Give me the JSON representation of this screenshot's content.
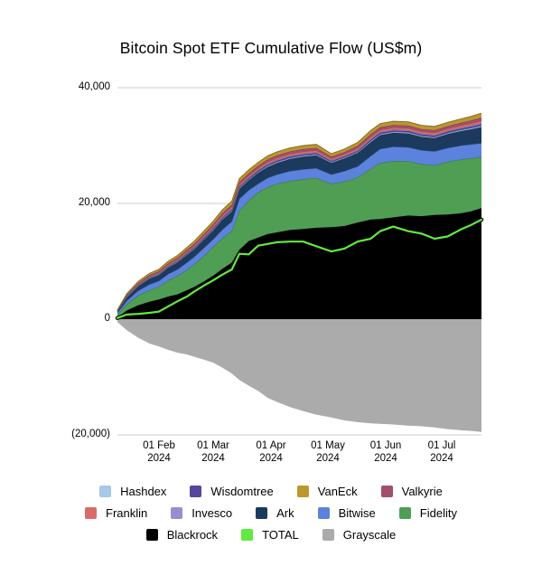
{
  "title": "Bitcoin Spot ETF Cumulative Flow (US$m)",
  "axes": {
    "y_ticks": [
      {
        "label": "40,000",
        "value": 40000
      },
      {
        "label": "20,000",
        "value": 20000
      },
      {
        "label": "0",
        "value": 0
      },
      {
        "label": "(20,000)",
        "value": -20000
      }
    ],
    "x_ticks": [
      {
        "label": "01 Feb",
        "year": "2024",
        "day": 22
      },
      {
        "label": "01 Mar",
        "year": "2024",
        "day": 51
      },
      {
        "label": "01 Apr",
        "year": "2024",
        "day": 82
      },
      {
        "label": "01 May",
        "year": "2024",
        "day": 112
      },
      {
        "label": "01 Jun",
        "year": "2024",
        "day": 143
      },
      {
        "label": "01 Jul",
        "year": "2024",
        "day": 173
      }
    ]
  },
  "legend": {
    "rows": [
      [
        {
          "label": "Hashdex",
          "color": "#a9c7e6"
        },
        {
          "label": "Wisdomtree",
          "color": "#55489c"
        },
        {
          "label": "VanEck",
          "color": "#bb972e"
        },
        {
          "label": "Valkyrie",
          "color": "#a44e6e"
        }
      ],
      [
        {
          "label": "Franklin",
          "color": "#d96c6a"
        },
        {
          "label": "Invesco",
          "color": "#9b8cce"
        },
        {
          "label": "Ark",
          "color": "#1c3a5e"
        },
        {
          "label": "Bitwise",
          "color": "#5b82dd"
        },
        {
          "label": "Fidelity",
          "color": "#4f9e54"
        }
      ],
      [
        {
          "label": "Blackrock",
          "color": "#000000"
        },
        {
          "label": "TOTAL",
          "color": "#62ea41"
        },
        {
          "label": "Grayscale",
          "color": "#ababab"
        }
      ]
    ]
  },
  "chart_data": {
    "type": "area",
    "title": "Bitcoin Spot ETF Cumulative Flow (US$m)",
    "unit": "US$m",
    "ylim": [
      -20000,
      40000
    ],
    "grid": true,
    "legend_position": "bottom",
    "x_days": [
      0,
      5,
      11,
      17,
      22,
      27,
      32,
      37,
      41,
      46,
      51,
      56,
      61,
      65,
      70,
      75,
      80,
      85,
      92,
      99,
      106,
      114,
      121,
      128,
      135,
      140,
      147,
      155,
      162,
      169,
      176,
      183,
      188,
      194
    ],
    "dates": [
      "10 Jan",
      "15 Jan",
      "21 Jan",
      "27 Jan",
      "01 Feb",
      "06 Feb",
      "11 Feb",
      "16 Feb",
      "20 Feb",
      "25 Feb",
      "01 Mar",
      "06 Mar",
      "11 Mar",
      "15 Mar",
      "20 Mar",
      "25 Mar",
      "30 Mar",
      "04 Apr",
      "11 Apr",
      "18 Apr",
      "25 Apr",
      "03 May",
      "10 May",
      "17 May",
      "24 May",
      "29 May",
      "05 Jun",
      "13 Jun",
      "20 Jun",
      "27 Jun",
      "04 Jul",
      "11 Jul",
      "16 Jul",
      "22 Jul"
    ],
    "y_gridlines": [
      40000,
      20000,
      0,
      -20000
    ],
    "series": [
      {
        "name": "Blackrock",
        "color": "#000000",
        "values": [
          300,
          1500,
          2400,
          3000,
          3400,
          3900,
          4300,
          5000,
          5600,
          6500,
          7500,
          8700,
          9800,
          12000,
          13500,
          14100,
          14700,
          15000,
          15400,
          15600,
          15800,
          15900,
          16100,
          16700,
          17200,
          17300,
          17600,
          17900,
          17800,
          18000,
          18100,
          18300,
          18600,
          19200
        ]
      },
      {
        "name": "Fidelity",
        "color": "#4f9e54",
        "values": [
          500,
          1100,
          1700,
          2000,
          2200,
          2800,
          3200,
          3500,
          3900,
          4400,
          5000,
          5300,
          5500,
          6800,
          7000,
          7800,
          8100,
          8400,
          8500,
          8600,
          8600,
          7500,
          7700,
          7800,
          8800,
          9700,
          9700,
          9400,
          9000,
          8600,
          9100,
          9300,
          9200,
          8800
        ]
      },
      {
        "name": "Bitwise",
        "color": "#5b82dd",
        "values": [
          300,
          600,
          800,
          1000,
          1000,
          1100,
          1100,
          1300,
          1300,
          1400,
          1300,
          1500,
          1600,
          2000,
          1800,
          1500,
          1600,
          1600,
          1700,
          1700,
          1700,
          1600,
          1800,
          1900,
          2200,
          2400,
          2500,
          2400,
          2400,
          2400,
          2400,
          2400,
          2400,
          2400
        ]
      },
      {
        "name": "Ark",
        "color": "#1c3a5e",
        "values": [
          300,
          600,
          800,
          1000,
          1000,
          1100,
          1200,
          1300,
          1300,
          1400,
          1500,
          1700,
          1700,
          1700,
          1700,
          1900,
          1900,
          2000,
          2100,
          2200,
          2200,
          2000,
          2200,
          2300,
          2400,
          2400,
          2400,
          2400,
          2300,
          2300,
          2400,
          2500,
          2600,
          2800
        ]
      },
      {
        "name": "Hashdex",
        "color": "#a9c7e6",
        "values": [
          20,
          50,
          60,
          70,
          80,
          90,
          100,
          100,
          110,
          120,
          130,
          140,
          140,
          140,
          140,
          140,
          150,
          150,
          150,
          150,
          150,
          130,
          130,
          150,
          160,
          160,
          160,
          160,
          160,
          160,
          160,
          170,
          180,
          190
        ]
      },
      {
        "name": "Wisdomtree",
        "color": "#55489c",
        "values": [
          20,
          70,
          100,
          110,
          120,
          130,
          140,
          160,
          170,
          180,
          190,
          200,
          220,
          220,
          220,
          220,
          230,
          230,
          230,
          230,
          230,
          190,
          190,
          220,
          240,
          240,
          240,
          240,
          240,
          240,
          240,
          250,
          260,
          290
        ]
      },
      {
        "name": "Invesco",
        "color": "#9b8cce",
        "values": [
          20,
          50,
          60,
          70,
          80,
          90,
          100,
          100,
          110,
          120,
          130,
          140,
          140,
          140,
          140,
          140,
          150,
          150,
          150,
          150,
          150,
          130,
          130,
          150,
          160,
          160,
          160,
          160,
          160,
          160,
          160,
          170,
          180,
          190
        ]
      },
      {
        "name": "Franklin",
        "color": "#d96c6a",
        "values": [
          40,
          110,
          140,
          160,
          180,
          200,
          220,
          230,
          250,
          270,
          290,
          310,
          320,
          320,
          320,
          320,
          340,
          340,
          340,
          340,
          340,
          290,
          290,
          330,
          360,
          360,
          360,
          360,
          360,
          360,
          360,
          380,
          400,
          430
        ]
      },
      {
        "name": "Valkyrie",
        "color": "#a44e6e",
        "values": [
          40,
          130,
          180,
          200,
          220,
          240,
          260,
          290,
          310,
          330,
          350,
          370,
          400,
          400,
          400,
          400,
          420,
          420,
          420,
          420,
          420,
          350,
          350,
          400,
          440,
          440,
          440,
          440,
          440,
          440,
          440,
          460,
          480,
          530
        ]
      },
      {
        "name": "VanEck",
        "color": "#bb972e",
        "values": [
          60,
          190,
          260,
          290,
          320,
          350,
          380,
          420,
          450,
          480,
          510,
          540,
          580,
          580,
          580,
          580,
          610,
          610,
          610,
          610,
          610,
          510,
          510,
          580,
          640,
          640,
          640,
          640,
          640,
          640,
          640,
          670,
          700,
          770
        ]
      }
    ],
    "negative_series": {
      "name": "Grayscale",
      "color": "#ababab",
      "values": [
        -500,
        -1900,
        -3200,
        -4200,
        -4700,
        -5300,
        -5800,
        -6100,
        -6500,
        -7000,
        -7500,
        -8400,
        -9400,
        -10500,
        -11500,
        -12400,
        -13600,
        -14300,
        -15200,
        -15900,
        -16500,
        -17000,
        -17500,
        -17800,
        -18000,
        -18100,
        -18200,
        -18400,
        -18500,
        -18700,
        -19000,
        -19200,
        -19300,
        -19500
      ]
    },
    "total_line": {
      "name": "TOTAL",
      "color": "#62ea41",
      "halo_color": "#000000",
      "values": [
        200,
        800,
        900,
        1100,
        1300,
        2200,
        3100,
        3900,
        4800,
        5800,
        6700,
        7700,
        8600,
        11300,
        11200,
        12700,
        13000,
        13300,
        13400,
        13400,
        12600,
        11700,
        12200,
        13400,
        13900,
        15200,
        16000,
        15200,
        14800,
        13900,
        14300,
        15500,
        16200,
        17200
      ]
    }
  }
}
